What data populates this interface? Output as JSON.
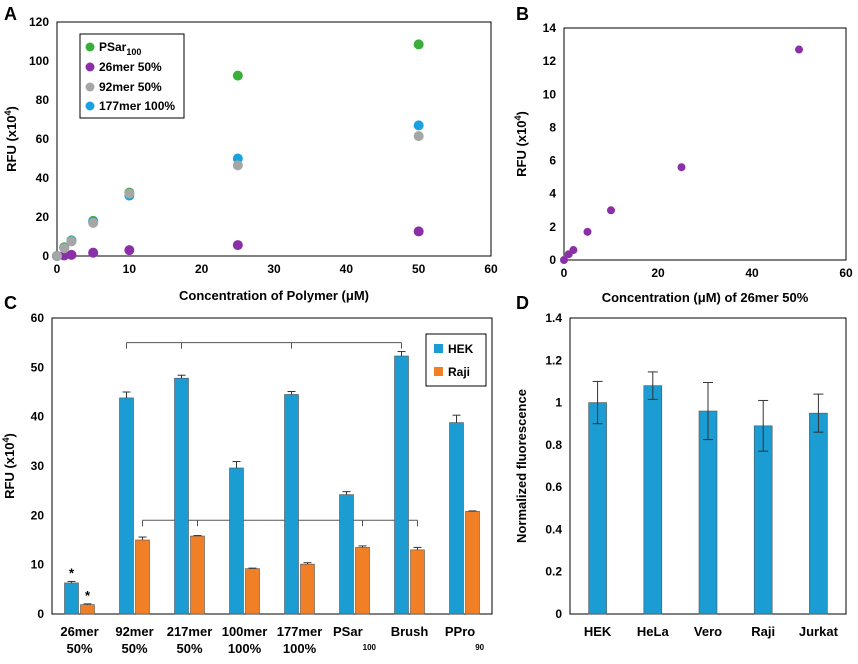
{
  "panel_labels": [
    "A",
    "B",
    "C",
    "D"
  ],
  "colors": {
    "psar": "#3aae3a",
    "mer26": "#8b2fa8",
    "mer92": "#a6a6a6",
    "mer177": "#1aa1e0",
    "hek": "#1b9cd2",
    "raji": "#f07f26",
    "error": "#333333"
  },
  "chart_data": [
    {
      "id": "A",
      "type": "scatter",
      "xlabel": "Concentration of Polymer (μM)",
      "ylabel_main": "RFU (x10",
      "ylabel_sup": "4",
      "ylabel_end": ")",
      "xlim": [
        0,
        60
      ],
      "ylim": [
        0,
        120
      ],
      "xticks": [
        0,
        10,
        20,
        30,
        40,
        50,
        60
      ],
      "yticks": [
        0,
        20,
        40,
        60,
        80,
        100,
        120
      ],
      "legend_position": "top-left",
      "series": [
        {
          "name": "PSar",
          "sub": "100",
          "color_key": "psar",
          "x": [
            0,
            1,
            2,
            5,
            10,
            25,
            50
          ],
          "y": [
            0,
            4.5,
            8,
            18,
            32.5,
            92.5,
            108.5
          ]
        },
        {
          "name": "26mer 50%",
          "sub": "",
          "color_key": "mer26",
          "x": [
            0,
            1,
            2,
            5,
            10,
            25,
            50
          ],
          "y": [
            0,
            0.3,
            0.6,
            1.7,
            3,
            5.6,
            12.6
          ]
        },
        {
          "name": "92mer 50%",
          "sub": "",
          "color_key": "mer92",
          "x": [
            0,
            1,
            2,
            5,
            10,
            25,
            50
          ],
          "y": [
            0,
            4,
            7.5,
            17,
            32,
            46.5,
            61.5
          ]
        },
        {
          "name": "177mer 100%",
          "sub": "",
          "color_key": "mer177",
          "x": [
            0,
            1,
            2,
            5,
            10,
            25,
            50
          ],
          "y": [
            0,
            4.2,
            7.8,
            17.5,
            31,
            50,
            67
          ]
        }
      ]
    },
    {
      "id": "B",
      "type": "scatter",
      "xlabel": "Concentration (μM) of 26mer 50%",
      "ylabel_main": "RFU (x10",
      "ylabel_sup": "4",
      "ylabel_end": ")",
      "xlim": [
        0,
        60
      ],
      "ylim": [
        0,
        14
      ],
      "xticks": [
        0,
        20,
        40,
        60
      ],
      "yticks": [
        0,
        2,
        4,
        6,
        8,
        10,
        12,
        14
      ],
      "series": [
        {
          "name": "26mer 50%",
          "color_key": "mer26",
          "x": [
            0,
            1,
            2,
            5,
            10,
            25,
            50
          ],
          "y": [
            0,
            0.35,
            0.6,
            1.7,
            3,
            5.6,
            12.7
          ]
        }
      ]
    },
    {
      "id": "C",
      "type": "bar",
      "ylabel_main": "RFU (x10",
      "ylabel_sup": "4",
      "ylabel_end": ")",
      "ylim": [
        0,
        60
      ],
      "yticks": [
        0,
        10,
        20,
        30,
        40,
        50,
        60
      ],
      "legend_position": "top-right",
      "categories": [
        {
          "line1": "26mer",
          "sub": "",
          "line2": "50%"
        },
        {
          "line1": "92mer",
          "sub": "",
          "line2": "50%"
        },
        {
          "line1": "217mer",
          "sub": "",
          "line2": "50%"
        },
        {
          "line1": "100mer",
          "sub": "",
          "line2": "100%"
        },
        {
          "line1": "177mer",
          "sub": "",
          "line2": "100%"
        },
        {
          "line1": "PSar",
          "sub": "100",
          "line2": ""
        },
        {
          "line1": "Brush",
          "sub": "",
          "line2": ""
        },
        {
          "line1": "PPro",
          "sub": "90",
          "line2": ""
        }
      ],
      "series": [
        {
          "name": "HEK",
          "color_key": "hek",
          "values": [
            6.3,
            43.8,
            47.8,
            29.6,
            44.5,
            24.2,
            52.3,
            38.8
          ],
          "errors": [
            0.3,
            1.2,
            0.6,
            1.3,
            0.6,
            0.6,
            0.9,
            1.5
          ]
        },
        {
          "name": "Raji",
          "color_key": "raji",
          "values": [
            1.9,
            15.0,
            15.8,
            9.2,
            10.1,
            13.5,
            13.0,
            20.8
          ],
          "errors": [
            0.15,
            0.6,
            0.1,
            0.1,
            0.3,
            0.3,
            0.5,
            0.1
          ]
        }
      ],
      "annotations": [
        "*",
        "*"
      ],
      "brackets": [
        {
          "level": 55,
          "categories": [
            1,
            2,
            4,
            6
          ],
          "series": "HEK"
        },
        {
          "level": 19,
          "categories": [
            1,
            2,
            5,
            6
          ],
          "series": "Raji"
        }
      ]
    },
    {
      "id": "D",
      "type": "bar",
      "ylabel": "Normalized fluorescence",
      "ylim": [
        0,
        1.4
      ],
      "yticks": [
        "0",
        "0.2",
        "0.4",
        "0.6",
        "0.8",
        "1",
        "1.2",
        "1.4"
      ],
      "categories": [
        "HEK",
        "HeLa",
        "Vero",
        "Raji",
        "Jurkat"
      ],
      "values": [
        1.0,
        1.08,
        0.96,
        0.89,
        0.95
      ],
      "errors": [
        0.1,
        0.065,
        0.135,
        0.12,
        0.09
      ]
    }
  ]
}
